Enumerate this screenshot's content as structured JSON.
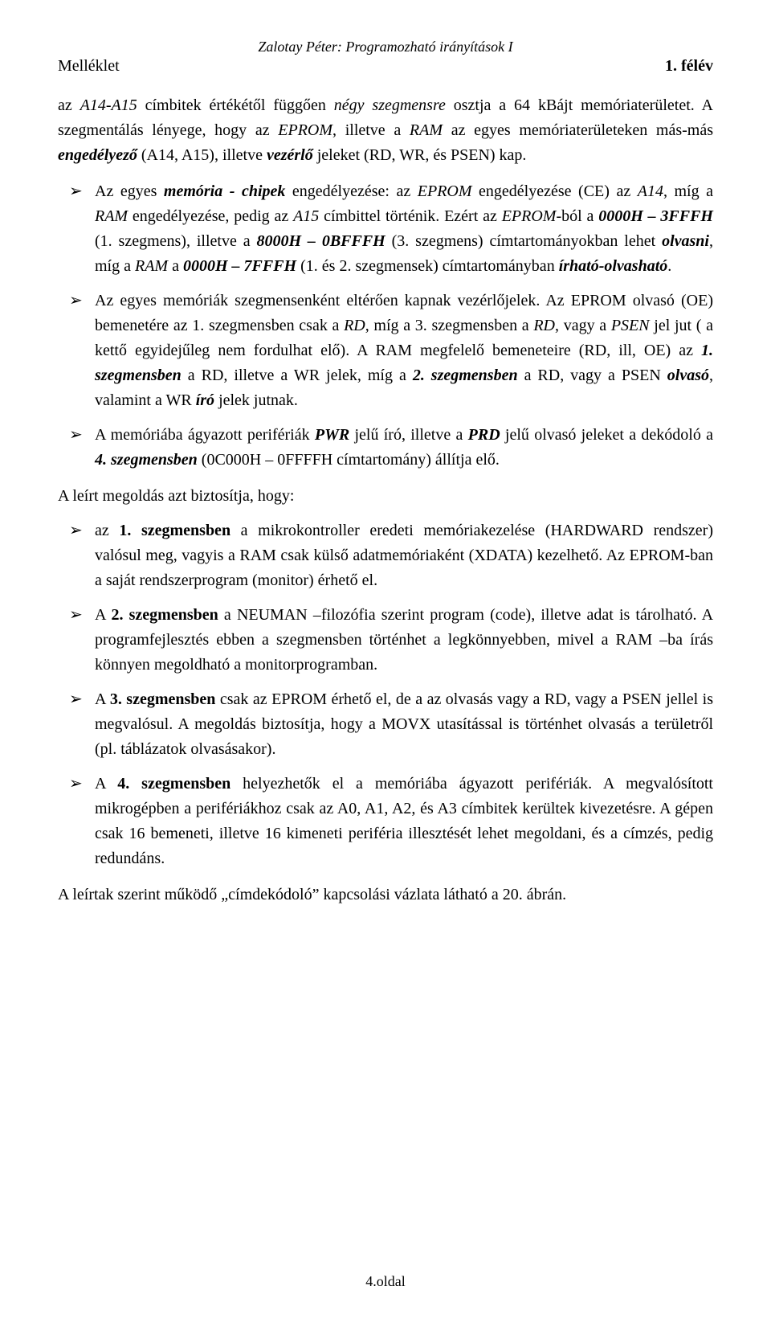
{
  "header": {
    "center": "Zalotay Péter: Programozható irányítások I",
    "left": "Melléklet",
    "right": "1. félév"
  },
  "intro1_html": "az <em>A14-A15</em> címbitek értékétől függően <em>négy szegmensre</em> osztja a 64 kBájt memóriaterületet. A szegmentálás lényege, hogy az <em>EPROM</em>, illetve a <em>RAM</em> az egyes memóriaterületeken más-más <strong><em>engedélyező</em></strong> (A14, A15), illetve <strong><em>vezérlő</em></strong> jeleket (RD, WR, és PSEN) kap.",
  "bullets_a": [
    "Az egyes <strong><em>memória - chipek</em></strong> engedélyezése: az <em>EPROM</em> engedélyezése (CE) az <em>A14</em>, míg a <em>RAM</em> engedélyezése, pedig az <em>A15</em> címbittel történik. Ezért az <em>EPROM</em>-ból a <strong><em>0000H – 3FFFH</em></strong> (1. szegmens), illetve a <strong><em>8000H – 0BFFFH</em></strong> (3. szegmens) címtartományokban lehet <strong><em>olvasni</em></strong>, míg a <em>RAM</em> a <strong><em>0000H – 7FFFH</em></strong> (1. és 2. szegmensek) címtartományban <strong><em>írható-olvasható</em></strong>.",
    "Az egyes memóriák szegmensenként eltérően kapnak vezérlőjelek. Az EPROM olvasó (OE) bemenetére az 1. szegmensben csak a <em>RD</em>, míg a 3. szegmensben a <em>RD</em>, vagy a <em>PSEN</em> jel jut ( a kettő egyidejűleg nem fordulhat elő). A RAM megfelelő bemeneteire (RD, ill, OE) az <strong><em>1. szegmensben</em></strong> a RD, illetve a WR jelek, míg a <strong><em>2. szegmensben</em></strong> a RD, vagy a PSEN <strong><em>olvasó</em></strong>, valamint a WR <strong><em>író</em></strong> jelek jutnak.",
    "A memóriába ágyazott perifériák <strong><em>PWR</em></strong> jelű író, illetve a <strong><em>PRD</em></strong> jelű olvasó jeleket a dekódoló a <strong><em>4. szegmensben</em></strong> (0C000H – 0FFFFH címtartomány) állítja elő."
  ],
  "section_intro": "A leírt megoldás azt biztosítja, hogy:",
  "bullets_b": [
    " az <strong>1. szegmensben</strong> a mikrokontroller eredeti memóriakezelése (HARDWARD rendszer) valósul meg, vagyis a RAM csak külső adatmemóriaként (XDATA) kezelhető. Az EPROM-ban a saját rendszerprogram (monitor) érhető el.",
    " A <strong>2. szegmensben</strong> a NEUMAN –filozófia szerint program (code), illetve adat is tárolható. A programfejlesztés ebben a szegmensben történhet a legkönnyebben, mivel a RAM –ba írás könnyen megoldható a monitorprogramban.",
    " A <strong>3. szegmensben</strong> csak az EPROM érhető el, de a az olvasás vagy a RD, vagy a PSEN jellel is megvalósul. A megoldás biztosítja, hogy a MOVX utasítással is történhet olvasás a területről (pl. táblázatok olvasásakor).",
    " A <strong>4. szegmensben</strong> helyezhetők el a memóriába ágyazott perifériák. A megvalósított mikrogépben a perifériákhoz csak az A0, A1, A2, és A3 címbitek kerültek kivezetésre. A gépen csak 16 bemeneti, illetve 16 kimeneti periféria illesztését lehet megoldani, és a címzés, pedig redundáns."
  ],
  "closing": "A leírtak szerint működő „címdekódoló” kapcsolási vázlata látható a 20. ábrán.",
  "footer": "4.oldal"
}
